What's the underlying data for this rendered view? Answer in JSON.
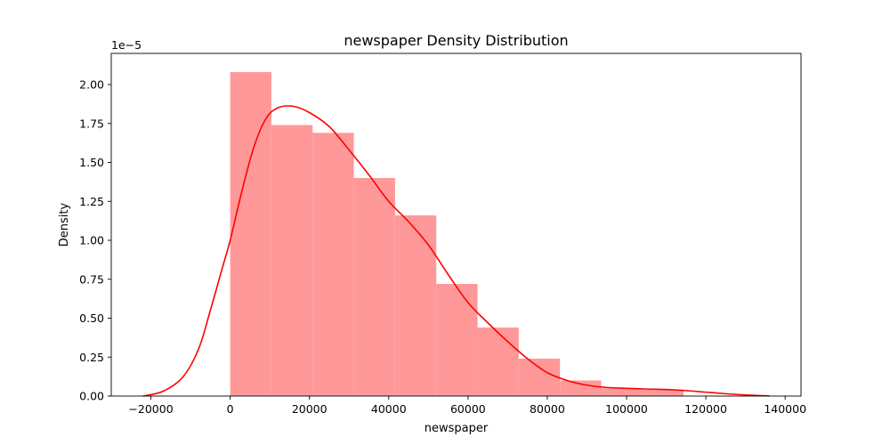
{
  "chart_data": {
    "type": "bar",
    "title": "newspaper Density Distribution",
    "xlabel": "newspaper",
    "ylabel": "Density",
    "y_offset_label": "1e−5",
    "xlim": [
      -30000,
      144000
    ],
    "ylim": [
      0,
      2.2
    ],
    "y_scale_multiplier": 1e-05,
    "x_ticks": [
      -20000,
      0,
      20000,
      40000,
      60000,
      80000,
      100000,
      120000,
      140000
    ],
    "x_tick_labels": [
      "−20000",
      "0",
      "20000",
      "40000",
      "60000",
      "80000",
      "100000",
      "120000",
      "140000"
    ],
    "y_ticks": [
      0,
      0.25,
      0.5,
      0.75,
      1.0,
      1.25,
      1.5,
      1.75,
      2.0
    ],
    "y_tick_labels": [
      "0.00",
      "0.25",
      "0.50",
      "0.75",
      "1.00",
      "1.25",
      "1.50",
      "1.75",
      "2.00"
    ],
    "grid": false,
    "series": [
      {
        "kind": "histogram",
        "color": "#ff9999",
        "bins": [
          {
            "x0": 0,
            "x1": 10400,
            "density": 2.08
          },
          {
            "x0": 10400,
            "x1": 20800,
            "density": 1.74
          },
          {
            "x0": 20800,
            "x1": 31200,
            "density": 1.69
          },
          {
            "x0": 31200,
            "x1": 41600,
            "density": 1.4
          },
          {
            "x0": 41600,
            "x1": 52000,
            "density": 1.16
          },
          {
            "x0": 52000,
            "x1": 62400,
            "density": 0.72
          },
          {
            "x0": 62400,
            "x1": 72800,
            "density": 0.44
          },
          {
            "x0": 72800,
            "x1": 83200,
            "density": 0.24
          },
          {
            "x0": 83200,
            "x1": 93600,
            "density": 0.1
          },
          {
            "x0": 93600,
            "x1": 104000,
            "density": 0.05
          },
          {
            "x0": 104000,
            "x1": 114400,
            "density": 0.04
          }
        ]
      },
      {
        "kind": "kde",
        "color": "#ff0000",
        "points": [
          [
            -22000,
            0.0
          ],
          [
            -17000,
            0.03
          ],
          [
            -12000,
            0.12
          ],
          [
            -8000,
            0.3
          ],
          [
            -5000,
            0.55
          ],
          [
            -2000,
            0.82
          ],
          [
            0,
            1.0
          ],
          [
            3000,
            1.32
          ],
          [
            6000,
            1.6
          ],
          [
            9000,
            1.78
          ],
          [
            12000,
            1.85
          ],
          [
            16000,
            1.86
          ],
          [
            20000,
            1.82
          ],
          [
            25000,
            1.73
          ],
          [
            30000,
            1.58
          ],
          [
            35000,
            1.42
          ],
          [
            40000,
            1.25
          ],
          [
            45000,
            1.12
          ],
          [
            50000,
            0.97
          ],
          [
            55000,
            0.78
          ],
          [
            60000,
            0.6
          ],
          [
            65000,
            0.47
          ],
          [
            70000,
            0.35
          ],
          [
            75000,
            0.24
          ],
          [
            80000,
            0.15
          ],
          [
            85000,
            0.1
          ],
          [
            90000,
            0.07
          ],
          [
            95000,
            0.055
          ],
          [
            100000,
            0.05
          ],
          [
            105000,
            0.045
          ],
          [
            110000,
            0.042
          ],
          [
            115000,
            0.035
          ],
          [
            120000,
            0.025
          ],
          [
            125000,
            0.015
          ],
          [
            130000,
            0.007
          ],
          [
            136000,
            0.001
          ]
        ]
      }
    ]
  }
}
